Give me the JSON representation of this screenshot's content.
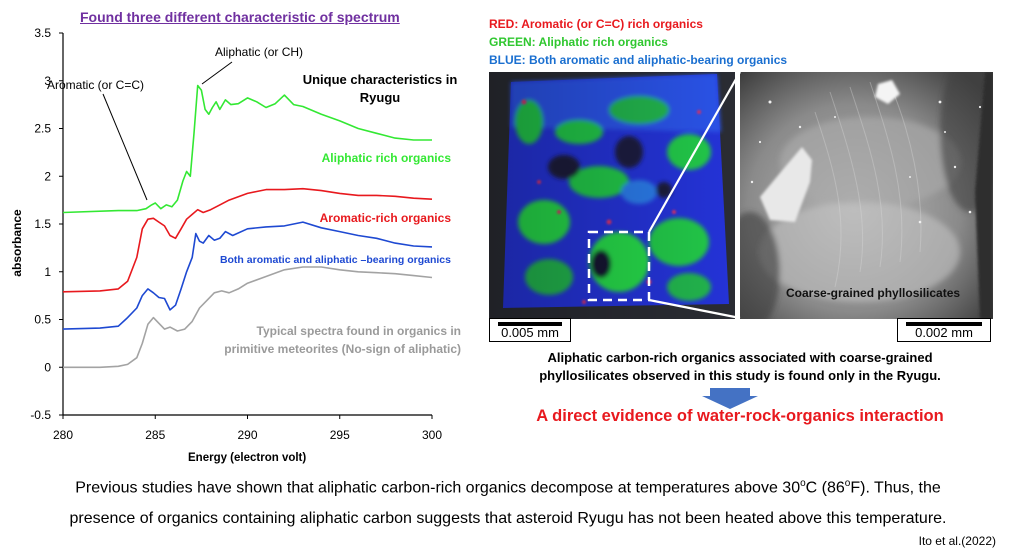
{
  "chart_data": {
    "type": "line",
    "title": "Found three different characteristic of spectrum",
    "xlabel": "Energy (electron volt)",
    "ylabel": "absorbance",
    "xlim": [
      280,
      300
    ],
    "ylim": [
      -0.5,
      3.5
    ],
    "x_ticks": [
      280,
      285,
      290,
      295,
      300
    ],
    "y_ticks": [
      -0.5,
      0,
      0.5,
      1,
      1.5,
      2,
      2.5,
      3,
      3.5
    ],
    "x_tick_labels": [
      "280",
      "285",
      "290",
      "295",
      "300"
    ],
    "y_tick_labels": [
      "-0.5",
      "0",
      "0.5",
      "1",
      "1.5",
      "2",
      "2.5",
      "3",
      "3.5"
    ],
    "grid": false,
    "series": [
      {
        "name": "Aliphatic rich organics",
        "color": "#33e833",
        "x": [
          280,
          283,
          284,
          284.5,
          284.8,
          285,
          285.3,
          285.6,
          285.9,
          286.2,
          286.5,
          286.7,
          286.9,
          287.1,
          287.3,
          287.5,
          287.7,
          287.9,
          288.1,
          288.3,
          288.5,
          288.8,
          289.1,
          289.5,
          290,
          290.5,
          291,
          291.5,
          292,
          292.5,
          293,
          294,
          295,
          296,
          297,
          298,
          299,
          300
        ],
        "y": [
          1.62,
          1.64,
          1.64,
          1.66,
          1.7,
          1.72,
          1.66,
          1.7,
          1.68,
          1.75,
          1.95,
          2.05,
          2.0,
          2.45,
          2.95,
          2.9,
          2.7,
          2.65,
          2.72,
          2.78,
          2.7,
          2.8,
          2.75,
          2.76,
          2.82,
          2.78,
          2.72,
          2.76,
          2.85,
          2.75,
          2.73,
          2.65,
          2.58,
          2.5,
          2.45,
          2.4,
          2.38,
          2.38
        ]
      },
      {
        "name": "Aromatic-rich organics",
        "color": "#e8191e",
        "x": [
          280,
          282,
          283,
          283.5,
          284,
          284.3,
          284.6,
          284.9,
          285.2,
          285.5,
          285.8,
          286.1,
          286.4,
          286.7,
          287,
          287.3,
          287.6,
          288,
          288.5,
          289,
          290,
          290.5,
          291,
          292,
          293,
          294,
          295,
          296,
          297,
          298,
          299,
          300
        ],
        "y": [
          0.79,
          0.8,
          0.82,
          0.9,
          1.15,
          1.45,
          1.55,
          1.56,
          1.52,
          1.48,
          1.38,
          1.35,
          1.45,
          1.55,
          1.6,
          1.65,
          1.62,
          1.65,
          1.7,
          1.75,
          1.82,
          1.84,
          1.86,
          1.86,
          1.87,
          1.85,
          1.82,
          1.8,
          1.8,
          1.79,
          1.77,
          1.76
        ]
      },
      {
        "name": "Both aromatic and aliphatic –bearing organics",
        "color": "#1e49d2",
        "x": [
          280,
          282,
          283,
          283.5,
          284,
          284.3,
          284.6,
          284.9,
          285.2,
          285.5,
          285.8,
          286.1,
          286.4,
          286.7,
          287,
          287.2,
          287.4,
          287.6,
          287.9,
          288.2,
          288.5,
          288.8,
          289.2,
          290,
          291,
          292,
          293,
          294,
          295,
          296,
          297,
          298,
          299,
          300
        ],
        "y": [
          0.4,
          0.41,
          0.43,
          0.52,
          0.62,
          0.75,
          0.82,
          0.78,
          0.73,
          0.72,
          0.6,
          0.65,
          0.82,
          1.0,
          1.15,
          1.4,
          1.32,
          1.3,
          1.38,
          1.33,
          1.35,
          1.42,
          1.38,
          1.45,
          1.47,
          1.48,
          1.52,
          1.46,
          1.42,
          1.38,
          1.35,
          1.3,
          1.27,
          1.26
        ]
      },
      {
        "name": "Typical spectra found in organics in primitive meteorites (No-sign of aliphatic)",
        "color": "#a3a3a3",
        "x": [
          280,
          282,
          283,
          283.5,
          284,
          284.3,
          284.6,
          284.9,
          285.2,
          285.5,
          285.8,
          286.2,
          286.6,
          287,
          287.4,
          287.8,
          288.2,
          288.6,
          289,
          289.5,
          290,
          291,
          292,
          293,
          294,
          295,
          296,
          297,
          298,
          299,
          300
        ],
        "y": [
          0,
          0,
          0.01,
          0.03,
          0.1,
          0.25,
          0.45,
          0.52,
          0.46,
          0.4,
          0.42,
          0.38,
          0.4,
          0.48,
          0.62,
          0.7,
          0.78,
          0.8,
          0.78,
          0.82,
          0.88,
          0.95,
          1.02,
          1.05,
          1.05,
          1.02,
          1.0,
          0.99,
          0.98,
          0.96,
          0.94
        ]
      }
    ],
    "annotations": {
      "aromatic_peak": "Aromatic (or C=C)",
      "aliphatic_peak": "Aliphatic (or CH)",
      "unique": "Unique characteristics in Ryugu"
    }
  },
  "legend_right": {
    "red": "RED: Aromatic (or C=C) rich organics",
    "green": "GREEN: Aliphatic rich organics",
    "blue": "BLUE: Both aromatic and aliphatic-bearing organics",
    "red_color": "#e8191e",
    "green_color": "#2fc72f",
    "blue_color": "#1a6fd0"
  },
  "images": {
    "left_scale": "0.005 mm",
    "right_scale": "0.002 mm",
    "right_label": "Coarse-grained phyllosilicates"
  },
  "caption": {
    "line1": "Aliphatic carbon-rich organics associated with coarse-grained",
    "line2": "phyllosilicates observed in this study is found only in the Ryugu."
  },
  "conclusion": "A direct evidence of water-rock-organics interaction",
  "conclusion_color": "#e8191e",
  "arrow_color": "#4472c4",
  "footer": {
    "line1_a": "Previous studies have shown that aliphatic carbon-rich organics decompose at temperatures above 30",
    "line1_sup1": "o",
    "line1_b": "C (86",
    "line1_sup2": "o",
    "line1_c": "F). Thus, the",
    "line2": "presence of organics containing aliphatic carbon suggests that asteroid Ryugu has not been heated above this temperature.",
    "citation": "Ito et al.(2022)"
  },
  "title_color": "#7030a0"
}
